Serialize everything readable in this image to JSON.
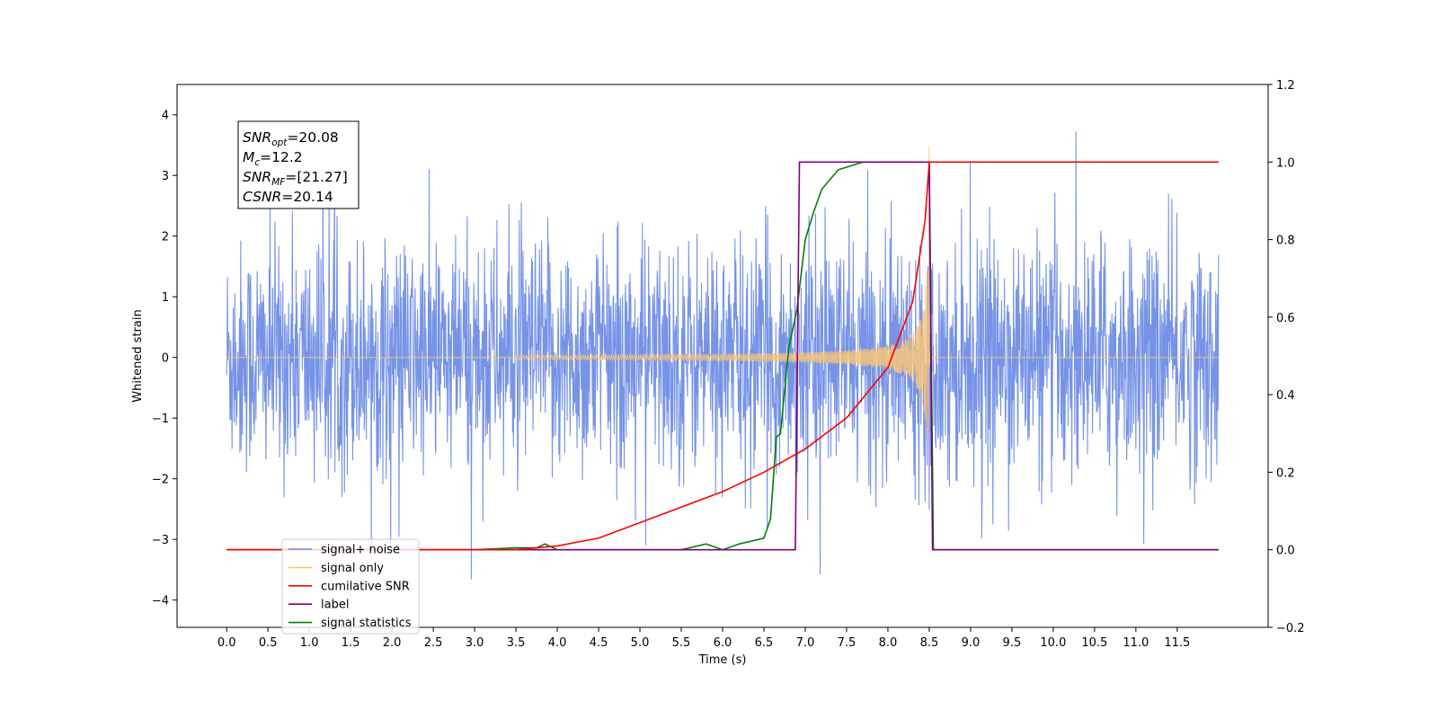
{
  "chart_data": {
    "type": "line",
    "title": "",
    "xlabel": "Time (s)",
    "ylabel": "Whitened strain",
    "xlim": [
      -0.6,
      12.6
    ],
    "ylim": [
      -4.45,
      4.5
    ],
    "y2lim": [
      -0.2,
      1.2
    ],
    "x_ticks": [
      "0.0",
      "0.5",
      "1.0",
      "1.5",
      "2.0",
      "2.5",
      "3.0",
      "3.5",
      "4.0",
      "4.5",
      "5.0",
      "5.5",
      "6.0",
      "6.5",
      "7.0",
      "7.5",
      "8.0",
      "8.5",
      "9.0",
      "9.5",
      "10.0",
      "10.5",
      "11.0",
      "11.5"
    ],
    "y_ticks": [
      "4",
      "3",
      "2",
      "1",
      "0",
      "−1",
      "−2",
      "−3",
      "−4"
    ],
    "y2_ticks": [
      "1.2",
      "1.0",
      "0.8",
      "0.6",
      "0.4",
      "0.2",
      "0.0",
      "−0.2"
    ],
    "annotation": {
      "lines": [
        {
          "main": "SNR",
          "sub": "opt",
          "rest": "=20.08"
        },
        {
          "main": "M",
          "sub": "c",
          "rest": "=12.2"
        },
        {
          "main": "SNR",
          "sub": "MF",
          "rest": "=[21.27]"
        },
        {
          "main": "CSNR",
          "sub": "",
          "rest": "=20.14"
        }
      ]
    },
    "legend": {
      "placement": "lower-left",
      "entries": [
        {
          "label": "signal+ noise",
          "color": "#6f8de6"
        },
        {
          "label": "signal only",
          "color": "#f8c579"
        },
        {
          "label": "cumilative SNR",
          "color": "#ff0000"
        },
        {
          "label": "label",
          "color": "#800080"
        },
        {
          "label": "signal statistics",
          "color": "#008000"
        }
      ]
    },
    "series": [
      {
        "name": "signal+ noise",
        "axis": "left",
        "color": "#6f8de6",
        "description": "noisy whitened strain, approx. amplitude ±2.5 with spikes to ±4.1",
        "x_range": [
          0.0,
          12.0
        ],
        "peak_max": 4.1,
        "peak_min": -4.05
      },
      {
        "name": "signal only",
        "axis": "left",
        "color": "#f8c579",
        "description": "chirp growing from 0 to ~±3.8 near t=8.5 s, then ~0",
        "merger_time": 8.5,
        "peak_amplitude": 3.8
      },
      {
        "name": "cumilative SNR",
        "axis": "right",
        "color": "#ff0000",
        "x": [
          0.0,
          3.5,
          4.0,
          4.5,
          5.0,
          5.5,
          6.0,
          6.5,
          7.0,
          7.5,
          8.0,
          8.3,
          8.45,
          8.5,
          12.0
        ],
        "y": [
          0.0,
          0.0,
          0.01,
          0.03,
          0.07,
          0.11,
          0.15,
          0.2,
          0.26,
          0.34,
          0.47,
          0.64,
          0.85,
          1.0,
          1.0
        ]
      },
      {
        "name": "label",
        "axis": "right",
        "color": "#800080",
        "x": [
          0.0,
          6.88,
          6.93,
          8.5,
          8.54,
          12.0
        ],
        "y": [
          0.0,
          0.0,
          1.0,
          1.0,
          0.0,
          0.0
        ]
      },
      {
        "name": "signal statistics",
        "axis": "right",
        "color": "#008000",
        "x": [
          0.0,
          3.0,
          3.5,
          3.75,
          3.85,
          4.0,
          5.5,
          5.8,
          6.0,
          6.2,
          6.5,
          6.58,
          6.65,
          6.7,
          6.8,
          6.9,
          7.0,
          7.1,
          7.2,
          7.4,
          7.7,
          8.5,
          8.55,
          8.6,
          12.0
        ],
        "y": [
          0.0,
          0.0,
          0.005,
          0.005,
          0.015,
          0.0,
          0.0,
          0.015,
          0.0,
          0.015,
          0.03,
          0.08,
          0.29,
          0.3,
          0.52,
          0.62,
          0.8,
          0.87,
          0.93,
          0.98,
          1.0,
          1.0,
          0.0,
          0.0,
          0.0
        ]
      }
    ]
  }
}
